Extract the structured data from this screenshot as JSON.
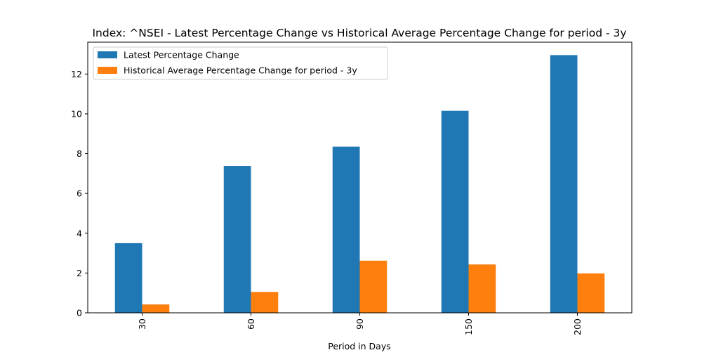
{
  "chart_data": {
    "type": "bar",
    "title": "Index: ^NSEI - Latest Percentage Change vs Historical Average Percentage Change for period - 3y",
    "xlabel": "Period in Days",
    "ylabel": "",
    "categories": [
      "30",
      "60",
      "90",
      "150",
      "200"
    ],
    "series": [
      {
        "name": "Latest Percentage Change",
        "color": "#1f77b4",
        "values": [
          3.5,
          7.38,
          8.35,
          10.15,
          12.95
        ]
      },
      {
        "name": "Historical Average Percentage Change for period - 3y",
        "color": "#ff7f0e",
        "values": [
          0.42,
          1.05,
          2.62,
          2.43,
          1.98
        ]
      }
    ],
    "ylim": [
      0,
      13.6
    ],
    "yticks": [
      0,
      2,
      4,
      6,
      8,
      10,
      12
    ],
    "grid": false,
    "legend_position": "top-left",
    "xtick_rotation": "vertical"
  }
}
